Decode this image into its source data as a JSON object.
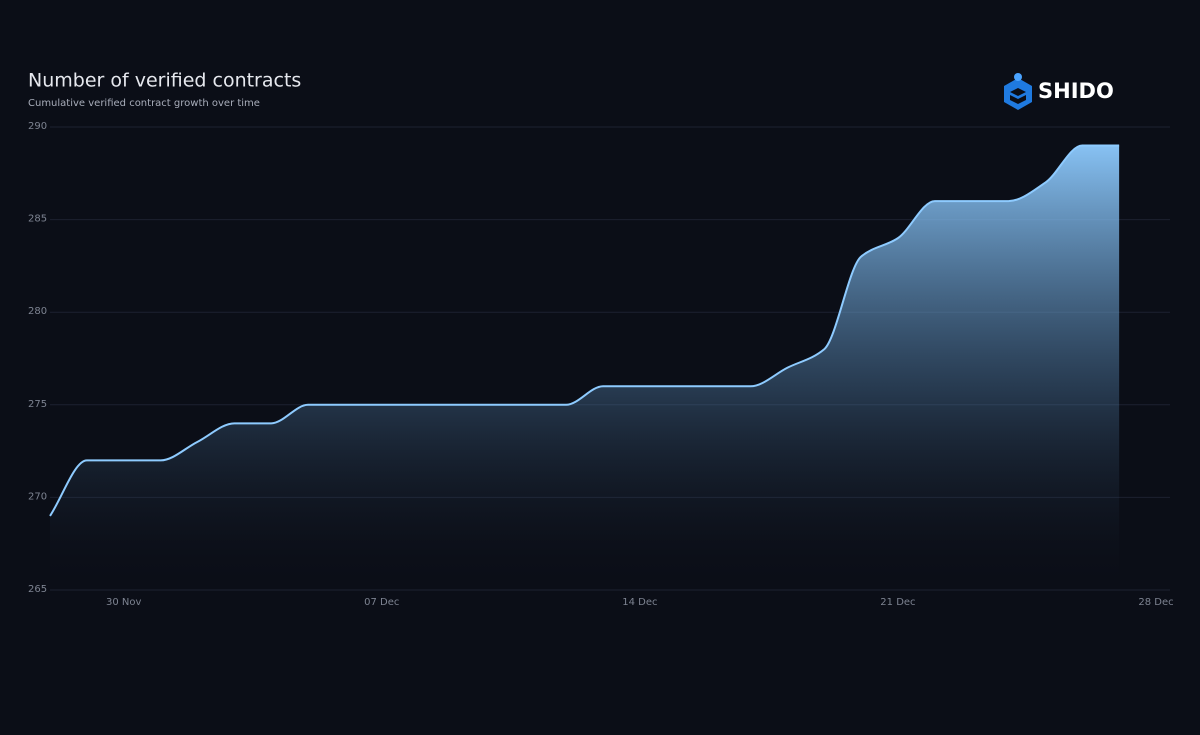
{
  "logo": "SHIDO",
  "chart_data": {
    "type": "area",
    "title": "Number of verified contracts",
    "subtitle": "Cumulative verified contract growth over time",
    "x": [
      "28 Nov",
      "29 Nov",
      "30 Nov",
      "01 Dec",
      "02 Dec",
      "03 Dec",
      "04 Dec",
      "05 Dec",
      "06 Dec",
      "07 Dec",
      "08 Dec",
      "09 Dec",
      "10 Dec",
      "11 Dec",
      "12 Dec",
      "13 Dec",
      "14 Dec",
      "15 Dec",
      "16 Dec",
      "17 Dec",
      "18 Dec",
      "19 Dec",
      "20 Dec",
      "21 Dec",
      "22 Dec",
      "23 Dec",
      "24 Dec",
      "25 Dec",
      "26 Dec",
      "27 Dec"
    ],
    "values": [
      269,
      272,
      272,
      272,
      273,
      274,
      274,
      275,
      275,
      275,
      275,
      275,
      275,
      275,
      275,
      276,
      276,
      276,
      276,
      276,
      277,
      278,
      283,
      284,
      286,
      286,
      286,
      287,
      289,
      289
    ],
    "color": "#8ecbff",
    "xlim": [
      "28 Nov",
      "28 Dec"
    ],
    "xticks": [
      "30 Nov",
      "07 Dec",
      "14 Dec",
      "21 Dec",
      "28 Dec"
    ],
    "ylim": [
      265,
      290
    ],
    "yticks": [
      265,
      270,
      275,
      280,
      285,
      290
    ],
    "grid": true
  }
}
